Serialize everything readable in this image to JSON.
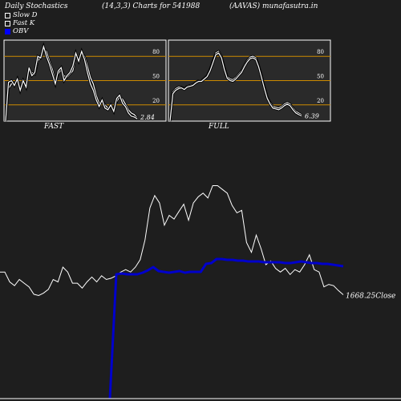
{
  "header": {
    "left": "Daily Stochastics",
    "middle": "(14,3,3) Charts for 541988",
    "right": "(AAVAS) munafasutra.in"
  },
  "legend": [
    {
      "label": "Slow  D",
      "swatch": "white-outline"
    },
    {
      "label": "Fast K",
      "swatch": "white-outline"
    },
    {
      "label": "OBV",
      "swatch": "blue"
    }
  ],
  "colors": {
    "background": "#1e1e1e",
    "panel_bg": "#2a2a2a",
    "level_line": "#cc8a00",
    "price": "#ffffff",
    "obv": "#0000cc"
  },
  "chart_data": [
    {
      "type": "line",
      "name": "FAST",
      "label": "FAST",
      "value_label": "2.84",
      "ylim": [
        0,
        100
      ],
      "yticks": [
        20,
        50,
        80
      ],
      "levels": [
        20,
        50,
        80
      ],
      "series": [
        {
          "name": "Slow D",
          "values": [
            0,
            40,
            46,
            46,
            48,
            42,
            48,
            46,
            62,
            60,
            58,
            74,
            80,
            89,
            86,
            74,
            64,
            49,
            58,
            64,
            56,
            54,
            58,
            62,
            80,
            78,
            82,
            80,
            68,
            54,
            46,
            32,
            22,
            24,
            20,
            16,
            18,
            16,
            24,
            30,
            27,
            21,
            14,
            10,
            8,
            4
          ]
        },
        {
          "name": "Fast K",
          "values": [
            0,
            48,
            50,
            44,
            52,
            38,
            50,
            42,
            66,
            56,
            60,
            80,
            78,
            92,
            80,
            70,
            58,
            46,
            62,
            66,
            50,
            56,
            60,
            68,
            84,
            74,
            86,
            76,
            60,
            46,
            38,
            26,
            18,
            26,
            16,
            14,
            20,
            12,
            28,
            32,
            22,
            18,
            10,
            6,
            5,
            2.84
          ]
        }
      ]
    },
    {
      "type": "line",
      "name": "FULL",
      "label": "FULL",
      "value_label": "6.39",
      "ylim": [
        0,
        100
      ],
      "yticks": [
        20,
        50,
        80
      ],
      "levels": [
        20,
        50,
        80
      ],
      "series": [
        {
          "name": "Slow D",
          "values": [
            0,
            36,
            40,
            42,
            42,
            40,
            43,
            44,
            45,
            48,
            50,
            50,
            53,
            56,
            64,
            74,
            84,
            86,
            80,
            66,
            55,
            52,
            51,
            54,
            58,
            62,
            69,
            75,
            79,
            80,
            78,
            69,
            56,
            42,
            30,
            23,
            18,
            17,
            16,
            18,
            21,
            23,
            21,
            16,
            12,
            10,
            8
          ]
        },
        {
          "name": "Fast K",
          "values": [
            0,
            34,
            38,
            40,
            41,
            39,
            42,
            43,
            44,
            47,
            49,
            49,
            52,
            55,
            62,
            72,
            82,
            84,
            78,
            64,
            53,
            50,
            49,
            52,
            56,
            60,
            67,
            73,
            77,
            78,
            76,
            67,
            54,
            40,
            28,
            21,
            16,
            15,
            14,
            16,
            19,
            21,
            19,
            14,
            10,
            8,
            6.39
          ]
        }
      ]
    },
    {
      "type": "line",
      "name": "Price and OBV",
      "value_label": "1668.25Close",
      "series": [
        {
          "name": "Close",
          "values": [
            1760,
            1760,
            1720,
            1705,
            1730,
            1715,
            1700,
            1670,
            1665,
            1675,
            1690,
            1730,
            1720,
            1780,
            1760,
            1715,
            1715,
            1695,
            1720,
            1740,
            1720,
            1745,
            1730,
            1735,
            1745,
            1760,
            1770,
            1760,
            1780,
            1810,
            1890,
            2020,
            2070,
            2040,
            1950,
            1990,
            1975,
            2005,
            2035,
            1970,
            2040,
            2065,
            2080,
            2060,
            2110,
            2110,
            2095,
            2080,
            2030,
            2000,
            2010,
            1880,
            1840,
            1910,
            1855,
            1790,
            1805,
            1775,
            1760,
            1775,
            1750,
            1770,
            1760,
            1790,
            1830,
            1770,
            1760,
            1700,
            1710,
            1705,
            1685,
            1668.25
          ]
        },
        {
          "name": "OBV",
          "values": [
            null,
            null,
            null,
            null,
            null,
            null,
            null,
            null,
            null,
            null,
            null,
            null,
            null,
            null,
            null,
            null,
            null,
            null,
            null,
            null,
            null,
            null,
            null,
            null,
            null,
            null,
            null,
            null,
            null,
            null,
            null,
            null,
            null,
            null,
            null,
            null,
            null,
            null,
            null,
            null,
            null,
            null,
            null,
            null,
            null,
            null,
            null,
            null,
            null,
            null,
            null,
            null,
            null,
            null,
            null,
            null,
            null,
            null,
            null,
            null,
            null,
            null,
            null,
            null,
            null,
            null,
            null,
            null,
            null,
            null,
            null,
            null
          ]
        }
      ],
      "obv_points": [
        [
          0,
          -820
        ],
        [
          1,
          40
        ],
        [
          2,
          42
        ],
        [
          3,
          40
        ],
        [
          4,
          40
        ],
        [
          5,
          40
        ],
        [
          6,
          44
        ],
        [
          7,
          50
        ],
        [
          8,
          58
        ],
        [
          9,
          48
        ],
        [
          10,
          46
        ],
        [
          11,
          44
        ],
        [
          12,
          46
        ],
        [
          13,
          48
        ],
        [
          14,
          44
        ],
        [
          15,
          46
        ],
        [
          16,
          46
        ],
        [
          17,
          46
        ],
        [
          18,
          66
        ],
        [
          19,
          68
        ],
        [
          20,
          78
        ],
        [
          21,
          78
        ],
        [
          22,
          76
        ],
        [
          23,
          76
        ],
        [
          24,
          74
        ],
        [
          25,
          74
        ],
        [
          26,
          72
        ],
        [
          27,
          72
        ],
        [
          28,
          72
        ],
        [
          29,
          70
        ],
        [
          30,
          70
        ],
        [
          31,
          70
        ],
        [
          32,
          70
        ],
        [
          33,
          68
        ],
        [
          34,
          68
        ],
        [
          35,
          70
        ],
        [
          36,
          72
        ],
        [
          37,
          70
        ],
        [
          38,
          68
        ],
        [
          39,
          68
        ],
        [
          40,
          66
        ],
        [
          41,
          66
        ],
        [
          42,
          64
        ],
        [
          43,
          62
        ],
        [
          44,
          60
        ]
      ]
    }
  ]
}
